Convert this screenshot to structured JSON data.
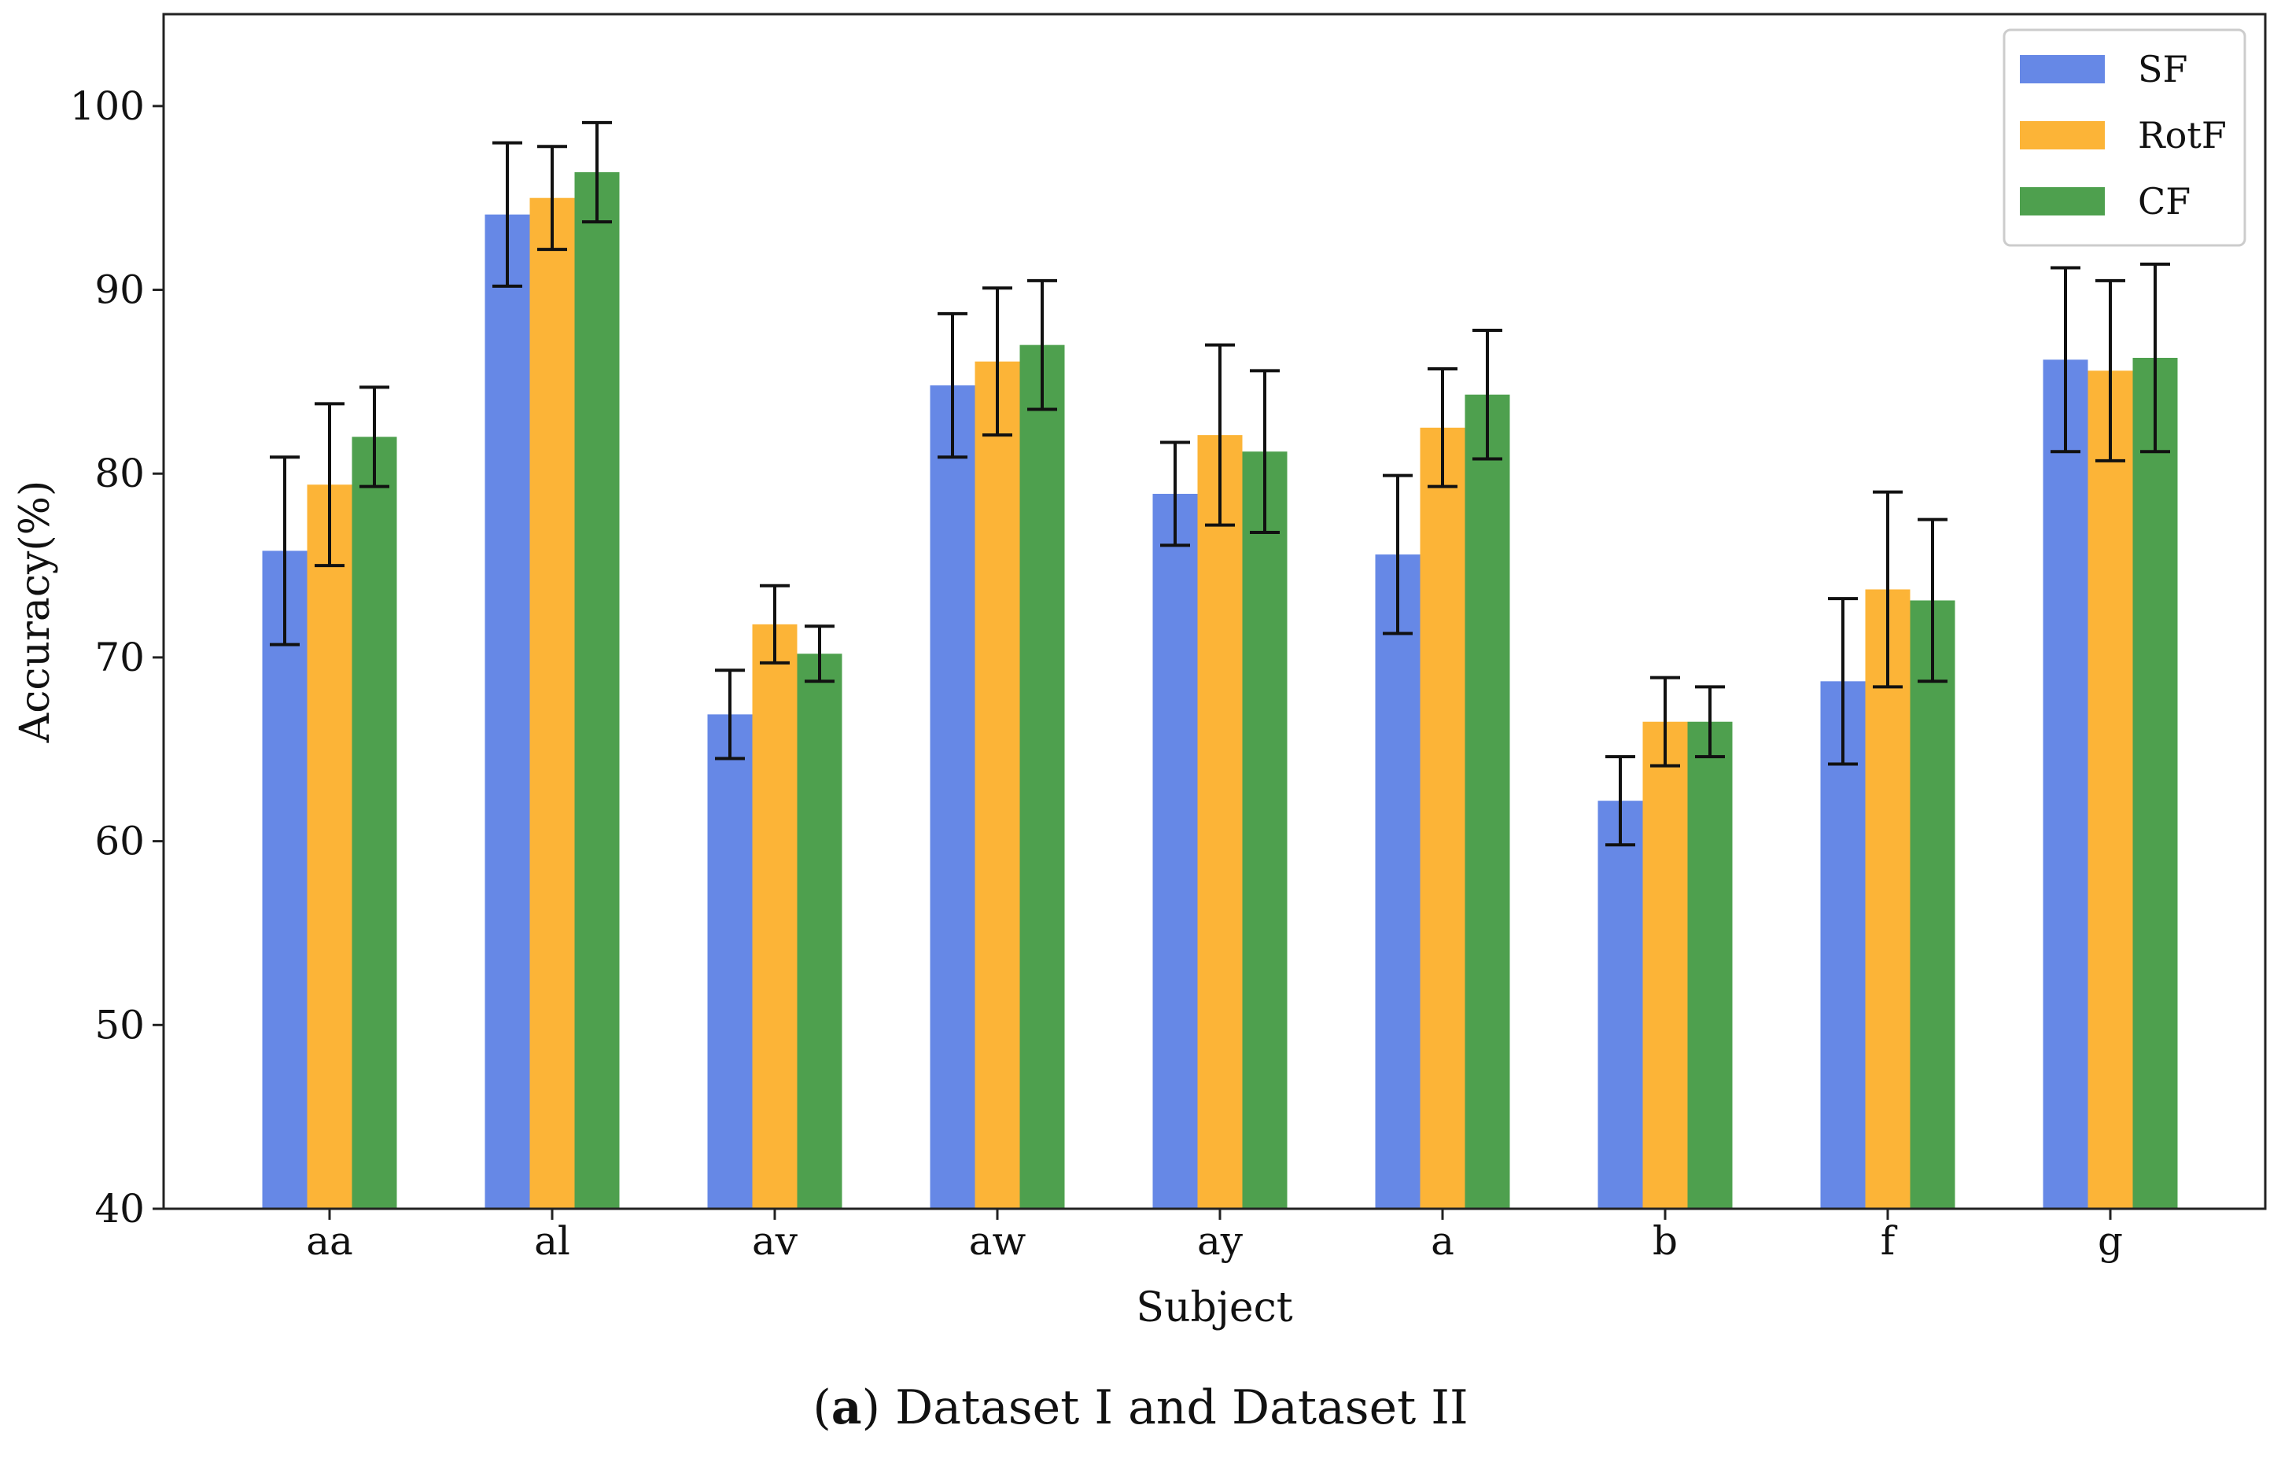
{
  "caption": {
    "letter": "a",
    "text": " Dataset I and Dataset II"
  },
  "chart_data": {
    "type": "bar",
    "title": "",
    "xlabel": "Subject",
    "ylabel": "Accuracy(%)",
    "ylim": [
      40,
      105
    ],
    "yticks": [
      40,
      50,
      60,
      70,
      80,
      90,
      100
    ],
    "legend_position": "top-right",
    "categories": [
      "aa",
      "al",
      "av",
      "aw",
      "ay",
      "a",
      "b",
      "f",
      "g"
    ],
    "series": [
      {
        "name": "SF",
        "color": "#6688e6",
        "values": [
          75.8,
          94.1,
          66.9,
          84.8,
          78.9,
          75.6,
          62.2,
          68.7,
          86.2
        ],
        "errors": [
          5.1,
          3.9,
          2.4,
          3.9,
          2.8,
          4.3,
          2.4,
          4.5,
          5.0
        ]
      },
      {
        "name": "RotF",
        "color": "#fcb437",
        "values": [
          79.4,
          95.0,
          71.8,
          86.1,
          82.1,
          82.5,
          66.5,
          73.7,
          85.6
        ],
        "errors": [
          4.4,
          2.8,
          2.1,
          4.0,
          4.9,
          3.2,
          2.4,
          5.3,
          4.9
        ]
      },
      {
        "name": "CF",
        "color": "#4ea04e",
        "values": [
          82.0,
          96.4,
          70.2,
          87.0,
          81.2,
          84.3,
          66.5,
          73.1,
          86.3
        ],
        "errors": [
          2.7,
          2.7,
          1.5,
          3.5,
          4.4,
          3.5,
          1.9,
          4.4,
          5.1
        ]
      }
    ]
  }
}
